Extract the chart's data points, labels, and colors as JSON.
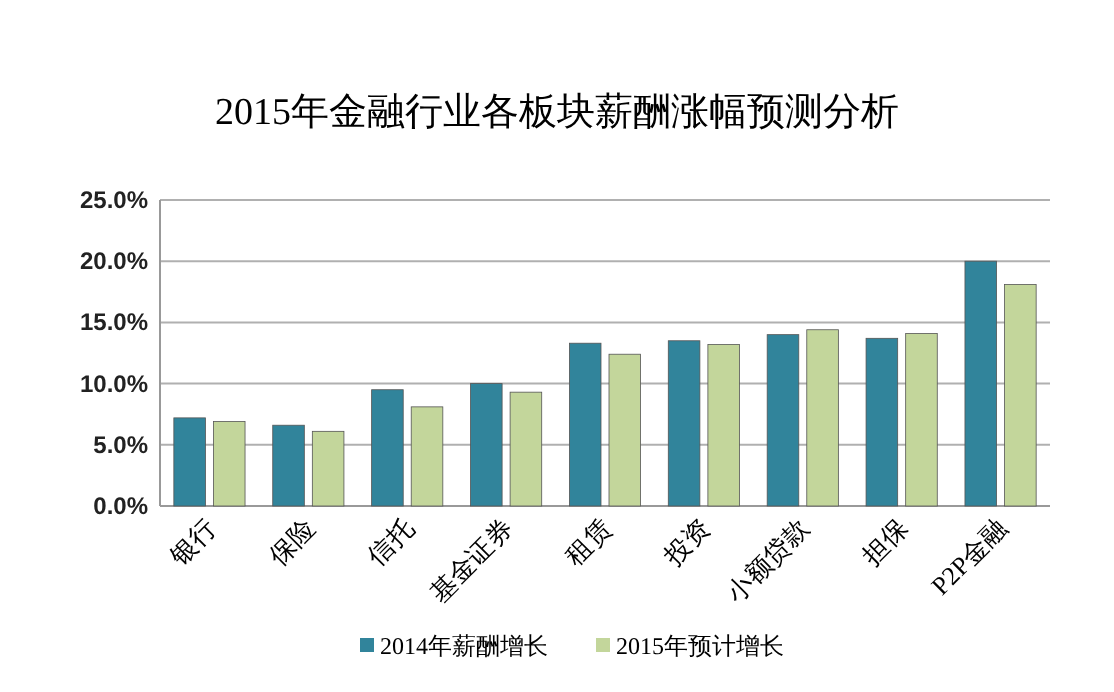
{
  "chart_data": {
    "type": "bar",
    "title": "2015年金融行业各板块薪酬涨幅预测分析",
    "categories": [
      "银行",
      "保险",
      "信托",
      "基金证券",
      "租赁",
      "投资",
      "小额贷款",
      "担保",
      "P2P金融"
    ],
    "series": [
      {
        "name": "2014年薪酬增长",
        "color": "#31849b",
        "values": [
          7.2,
          6.6,
          9.5,
          10.0,
          13.3,
          13.5,
          14.0,
          13.7,
          20.0
        ]
      },
      {
        "name": "2015年预计增长",
        "color": "#c3d69b",
        "values": [
          6.9,
          6.1,
          8.1,
          9.3,
          12.4,
          13.2,
          14.4,
          14.1,
          18.1
        ]
      }
    ],
    "ylim": [
      0,
      25
    ],
    "yticks": [
      {
        "value": 0,
        "label": "0.0%"
      },
      {
        "value": 5,
        "label": "5.0%"
      },
      {
        "value": 10,
        "label": "10.0%"
      },
      {
        "value": 15,
        "label": "15.0%"
      },
      {
        "value": 20,
        "label": "20.0%"
      },
      {
        "value": 25,
        "label": "25.0%"
      }
    ],
    "grid": "y",
    "legend": "bottom"
  }
}
